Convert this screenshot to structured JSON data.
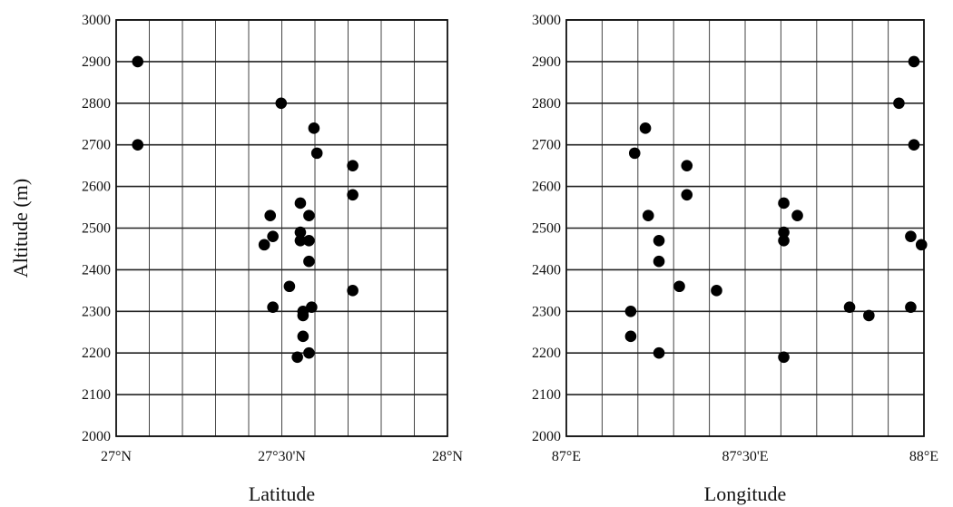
{
  "chart_data": [
    {
      "type": "scatter",
      "title": "",
      "xlabel": "Latitude",
      "ylabel": "Altitude (m)",
      "xlim": [
        27.0,
        28.0
      ],
      "ylim": [
        2000,
        3000
      ],
      "x_ticks": [
        27.0,
        27.1,
        27.2,
        27.3,
        27.4,
        27.5,
        27.6,
        27.7,
        27.8,
        27.9,
        28.0
      ],
      "x_tick_labels": [
        {
          "value": 27.0,
          "label": "27°N"
        },
        {
          "value": 27.5,
          "label": "27°30'N"
        },
        {
          "value": 28.0,
          "label": "28°N"
        }
      ],
      "y_ticks": [
        2000,
        2100,
        2200,
        2300,
        2400,
        2500,
        2600,
        2700,
        2800,
        2900,
        3000
      ],
      "y_tick_labels": [
        "2000",
        "2100",
        "2200",
        "2300",
        "2400",
        "2500",
        "2600",
        "2700",
        "2800",
        "2900",
        "3000"
      ],
      "grid": true,
      "marker_color": "#000000",
      "points": [
        {
          "x": 27.065,
          "y": 2900
        },
        {
          "x": 27.065,
          "y": 2700
        },
        {
          "x": 27.498,
          "y": 2800
        },
        {
          "x": 27.597,
          "y": 2740
        },
        {
          "x": 27.606,
          "y": 2680
        },
        {
          "x": 27.714,
          "y": 2650
        },
        {
          "x": 27.714,
          "y": 2580
        },
        {
          "x": 27.556,
          "y": 2560
        },
        {
          "x": 27.582,
          "y": 2530
        },
        {
          "x": 27.465,
          "y": 2530
        },
        {
          "x": 27.556,
          "y": 2490
        },
        {
          "x": 27.473,
          "y": 2480
        },
        {
          "x": 27.556,
          "y": 2470
        },
        {
          "x": 27.582,
          "y": 2470
        },
        {
          "x": 27.447,
          "y": 2460
        },
        {
          "x": 27.582,
          "y": 2420
        },
        {
          "x": 27.523,
          "y": 2360
        },
        {
          "x": 27.714,
          "y": 2350
        },
        {
          "x": 27.473,
          "y": 2310
        },
        {
          "x": 27.59,
          "y": 2310
        },
        {
          "x": 27.564,
          "y": 2300
        },
        {
          "x": 27.564,
          "y": 2290
        },
        {
          "x": 27.564,
          "y": 2240
        },
        {
          "x": 27.582,
          "y": 2200
        },
        {
          "x": 27.547,
          "y": 2190
        }
      ]
    },
    {
      "type": "scatter",
      "title": "",
      "xlabel": "Longitude",
      "ylabel": "",
      "xlim": [
        87.0,
        88.0
      ],
      "ylim": [
        2000,
        3000
      ],
      "x_ticks": [
        87.0,
        87.1,
        87.2,
        87.3,
        87.4,
        87.5,
        87.6,
        87.7,
        87.8,
        87.9,
        88.0
      ],
      "x_tick_labels": [
        {
          "value": 87.0,
          "label": "87°E"
        },
        {
          "value": 87.5,
          "label": "87°30'E"
        },
        {
          "value": 88.0,
          "label": "88°E"
        }
      ],
      "y_ticks": [
        2000,
        2100,
        2200,
        2300,
        2400,
        2500,
        2600,
        2700,
        2800,
        2900,
        3000
      ],
      "y_tick_labels": [
        "2000",
        "2100",
        "2200",
        "2300",
        "2400",
        "2500",
        "2600",
        "2700",
        "2800",
        "2900",
        "3000"
      ],
      "grid": true,
      "marker_color": "#000000",
      "points": [
        {
          "x": 87.972,
          "y": 2900
        },
        {
          "x": 87.93,
          "y": 2800
        },
        {
          "x": 87.972,
          "y": 2700
        },
        {
          "x": 87.221,
          "y": 2740
        },
        {
          "x": 87.191,
          "y": 2680
        },
        {
          "x": 87.337,
          "y": 2650
        },
        {
          "x": 87.337,
          "y": 2580
        },
        {
          "x": 87.608,
          "y": 2560
        },
        {
          "x": 87.646,
          "y": 2530
        },
        {
          "x": 87.229,
          "y": 2530
        },
        {
          "x": 87.608,
          "y": 2490
        },
        {
          "x": 87.963,
          "y": 2480
        },
        {
          "x": 87.259,
          "y": 2470
        },
        {
          "x": 87.608,
          "y": 2470
        },
        {
          "x": 87.993,
          "y": 2460
        },
        {
          "x": 87.259,
          "y": 2420
        },
        {
          "x": 87.316,
          "y": 2360
        },
        {
          "x": 87.42,
          "y": 2350
        },
        {
          "x": 87.792,
          "y": 2310
        },
        {
          "x": 87.963,
          "y": 2310
        },
        {
          "x": 87.18,
          "y": 2300
        },
        {
          "x": 87.846,
          "y": 2290
        },
        {
          "x": 87.18,
          "y": 2240
        },
        {
          "x": 87.259,
          "y": 2200
        },
        {
          "x": 87.608,
          "y": 2190
        }
      ]
    }
  ]
}
